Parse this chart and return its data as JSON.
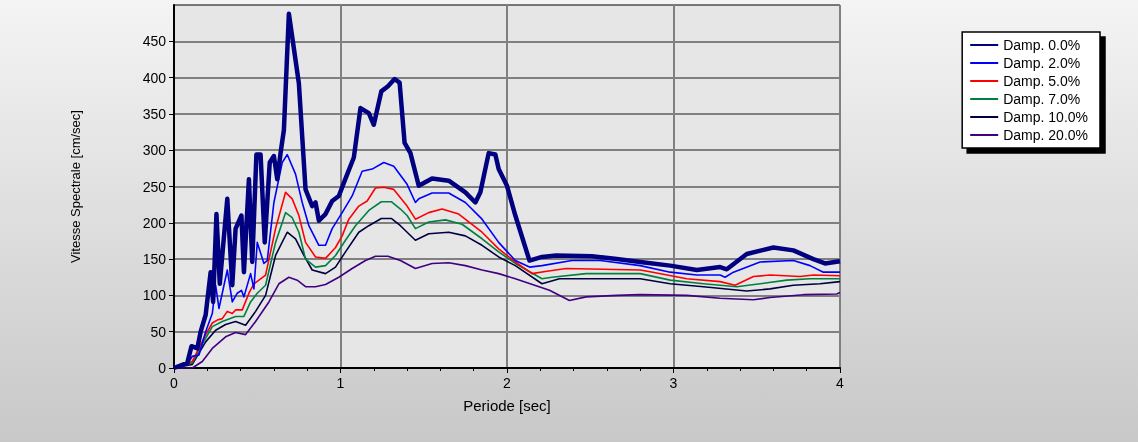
{
  "chart_data": {
    "type": "line",
    "xlabel": "Periode [sec]",
    "ylabel": "Vitesse Spectrale [cm/sec]",
    "xlim": [
      0,
      4
    ],
    "xticks": [
      0,
      1,
      2,
      3,
      4
    ],
    "ylim": [
      0,
      500
    ],
    "yticks": [
      0,
      50,
      100,
      150,
      200,
      250,
      300,
      350,
      400,
      450
    ],
    "grid": true,
    "legend": "top right",
    "marker": "none",
    "line_style": "solid",
    "series": [
      {
        "name": "Damp. 0.0%",
        "color": "#000080",
        "x": [
          0,
          0.08,
          0.105,
          0.14,
          0.16,
          0.19,
          0.22,
          0.235,
          0.255,
          0.275,
          0.32,
          0.35,
          0.37,
          0.405,
          0.42,
          0.45,
          0.47,
          0.495,
          0.52,
          0.545,
          0.575,
          0.6,
          0.62,
          0.64,
          0.66,
          0.69,
          0.71,
          0.75,
          0.79,
          0.83,
          0.85,
          0.87,
          0.91,
          0.95,
          0.99,
          1.02,
          1.08,
          1.12,
          1.17,
          1.2,
          1.245,
          1.285,
          1.325,
          1.355,
          1.385,
          1.42,
          1.47,
          1.55,
          1.65,
          1.75,
          1.81,
          1.84,
          1.89,
          1.93,
          1.95,
          2.0,
          2.05,
          2.135,
          2.21,
          2.295,
          2.51,
          2.66,
          2.8,
          2.98,
          3.14,
          3.28,
          3.32,
          3.44,
          3.6,
          3.72,
          3.84,
          3.91,
          4.0
        ],
        "values": [
          0,
          7,
          30,
          27,
          50,
          73,
          132,
          91,
          212,
          116,
          233,
          114,
          192,
          210,
          132,
          260,
          146,
          294,
          294,
          173,
          283,
          292,
          260,
          296,
          328,
          488,
          456,
          392,
          246,
          223,
          228,
          203,
          212,
          230,
          237,
          255,
          290,
          358,
          351,
          335,
          381,
          388,
          398,
          393,
          310,
          296,
          251,
          261,
          258,
          242,
          228,
          242,
          296,
          294,
          274,
          251,
          210,
          148,
          153,
          155,
          154,
          150,
          146,
          141,
          135,
          139,
          136,
          157,
          166,
          162,
          150,
          144,
          147
        ]
      },
      {
        "name": "Damp. 2.0%",
        "color": "#0000ff",
        "x": [
          0,
          0.08,
          0.11,
          0.15,
          0.19,
          0.23,
          0.25,
          0.27,
          0.32,
          0.35,
          0.38,
          0.405,
          0.42,
          0.46,
          0.48,
          0.5,
          0.54,
          0.56,
          0.6,
          0.65,
          0.68,
          0.73,
          0.77,
          0.81,
          0.87,
          0.91,
          0.95,
          1.01,
          1.07,
          1.13,
          1.19,
          1.26,
          1.32,
          1.4,
          1.45,
          1.47,
          1.55,
          1.65,
          1.75,
          1.85,
          1.95,
          2.05,
          2.135,
          2.21,
          2.39,
          2.56,
          2.8,
          2.98,
          3.14,
          3.28,
          3.31,
          3.36,
          3.52,
          3.72,
          3.82,
          3.9,
          4.0
        ],
        "values": [
          0,
          5,
          16,
          18,
          50,
          75,
          114,
          82,
          135,
          91,
          103,
          107,
          98,
          130,
          109,
          173,
          144,
          148,
          228,
          283,
          294,
          267,
          228,
          196,
          169,
          169,
          192,
          214,
          237,
          271,
          274,
          283,
          278,
          253,
          228,
          233,
          241,
          241,
          228,
          205,
          173,
          148,
          139,
          141,
          148,
          148,
          141,
          132,
          128,
          128,
          125,
          132,
          146,
          148,
          141,
          132,
          132
        ]
      },
      {
        "name": "Damp. 5.0%",
        "color": "#ff0000",
        "x": [
          0,
          0.11,
          0.19,
          0.23,
          0.26,
          0.29,
          0.32,
          0.35,
          0.37,
          0.41,
          0.45,
          0.48,
          0.51,
          0.55,
          0.61,
          0.67,
          0.71,
          0.75,
          0.79,
          0.85,
          0.91,
          0.97,
          1.01,
          1.05,
          1.11,
          1.16,
          1.21,
          1.26,
          1.32,
          1.4,
          1.45,
          1.53,
          1.61,
          1.71,
          1.85,
          1.95,
          2.05,
          2.15,
          2.23,
          2.355,
          2.8,
          2.875,
          3.08,
          3.28,
          3.37,
          3.48,
          3.58,
          3.76,
          3.84,
          4.0
        ],
        "values": [
          0,
          9,
          46,
          62,
          66,
          68,
          78,
          75,
          80,
          80,
          103,
          116,
          121,
          128,
          192,
          242,
          233,
          210,
          173,
          153,
          151,
          166,
          182,
          205,
          223,
          230,
          248,
          249,
          246,
          223,
          205,
          214,
          219,
          212,
          187,
          164,
          146,
          130,
          133,
          137,
          135,
          132,
          123,
          119,
          114,
          126,
          128,
          126,
          128,
          127
        ]
      },
      {
        "name": "Damp. 7.0%",
        "color": "#008040",
        "x": [
          0,
          0.11,
          0.19,
          0.23,
          0.29,
          0.37,
          0.42,
          0.46,
          0.5,
          0.55,
          0.61,
          0.67,
          0.71,
          0.75,
          0.79,
          0.85,
          0.91,
          0.97,
          1.03,
          1.09,
          1.17,
          1.245,
          1.305,
          1.36,
          1.4,
          1.45,
          1.53,
          1.63,
          1.73,
          1.85,
          1.95,
          2.05,
          2.21,
          2.27,
          2.475,
          2.8,
          2.98,
          3.18,
          3.38,
          3.52,
          3.68,
          3.82,
          4.0
        ],
        "values": [
          0,
          7,
          41,
          57,
          64,
          71,
          71,
          91,
          103,
          114,
          173,
          214,
          207,
          187,
          150,
          139,
          141,
          155,
          176,
          196,
          217,
          229,
          229,
          219,
          210,
          192,
          201,
          204,
          198,
          178,
          160,
          144,
          123,
          125,
          130,
          130,
          121,
          116,
          112,
          116,
          121,
          123,
          123
        ]
      },
      {
        "name": "Damp. 10.0%",
        "color": "#000040",
        "x": [
          0,
          0.11,
          0.19,
          0.25,
          0.31,
          0.37,
          0.43,
          0.49,
          0.55,
          0.61,
          0.68,
          0.73,
          0.78,
          0.83,
          0.91,
          0.97,
          1.03,
          1.11,
          1.17,
          1.245,
          1.305,
          1.36,
          1.4,
          1.45,
          1.53,
          1.65,
          1.75,
          1.85,
          1.95,
          2.05,
          2.21,
          2.315,
          2.475,
          2.8,
          2.98,
          3.18,
          3.44,
          3.58,
          3.72,
          3.88,
          4.0
        ],
        "values": [
          0,
          5,
          36,
          52,
          60,
          64,
          59,
          78,
          100,
          155,
          187,
          178,
          155,
          135,
          130,
          139,
          160,
          187,
          196,
          206,
          206,
          196,
          187,
          176,
          185,
          187,
          182,
          169,
          153,
          141,
          116,
          123,
          123,
          123,
          116,
          112,
          106,
          109,
          114,
          116,
          119
        ]
      },
      {
        "name": "Damp. 20.0%",
        "color": "#400080",
        "x": [
          0,
          0.11,
          0.17,
          0.23,
          0.31,
          0.37,
          0.43,
          0.49,
          0.57,
          0.63,
          0.69,
          0.74,
          0.79,
          0.85,
          0.91,
          0.99,
          1.07,
          1.15,
          1.21,
          1.285,
          1.36,
          1.45,
          1.55,
          1.65,
          1.75,
          1.85,
          1.95,
          2.05,
          2.255,
          2.375,
          2.475,
          2.66,
          2.8,
          3.08,
          3.28,
          3.48,
          3.58,
          3.78,
          3.98,
          4.0
        ],
        "values": [
          0,
          0,
          9,
          27,
          43,
          49,
          46,
          64,
          91,
          116,
          125,
          121,
          112,
          112,
          115,
          125,
          137,
          148,
          154,
          154,
          148,
          137,
          144,
          145,
          141,
          135,
          130,
          123,
          107,
          93,
          98,
          100,
          101,
          100,
          96,
          94,
          97,
          101,
          102,
          104
        ]
      }
    ]
  }
}
